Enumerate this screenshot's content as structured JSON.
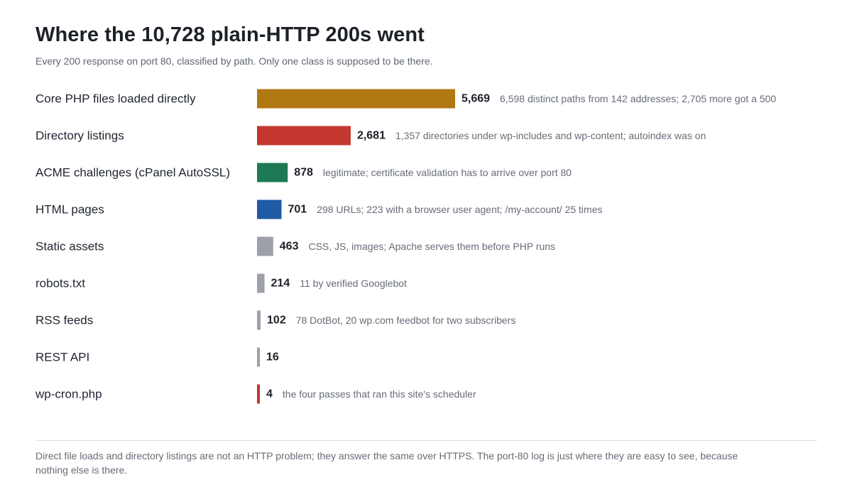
{
  "chart_data": {
    "type": "bar",
    "orientation": "horizontal",
    "title": "Where the 10,728 plain-HTTP 200s went",
    "subtitle": "Every 200 response on port 80, classified by path. Only one class is supposed to be there.",
    "rows": [
      {
        "category": "Core PHP files loaded directly",
        "value": 5669,
        "value_label": "5,669",
        "note": "6,598 distinct paths from 142 addresses; 2,705 more got a 500",
        "color": "#b07812"
      },
      {
        "category": "Directory listings",
        "value": 2681,
        "value_label": "2,681",
        "note": "1,357 directories under wp-includes and wp-content; autoindex was on",
        "color": "#c33730"
      },
      {
        "category": "ACME challenges (cPanel AutoSSL)",
        "value": 878,
        "value_label": "878",
        "note": "legitimate; certificate validation has to arrive over port 80",
        "color": "#1d7a55"
      },
      {
        "category": "HTML pages",
        "value": 701,
        "value_label": "701",
        "note": "298 URLs; 223 with a browser user agent; /my-account/ 25 times",
        "color": "#1f5aa6"
      },
      {
        "category": "Static assets",
        "value": 463,
        "value_label": "463",
        "note": "CSS, JS, images; Apache serves them before PHP runs",
        "color": "#9ca0a8"
      },
      {
        "category": "robots.txt",
        "value": 214,
        "value_label": "214",
        "note": "11 by verified Googlebot",
        "color": "#9ca0a8"
      },
      {
        "category": "RSS feeds",
        "value": 102,
        "value_label": "102",
        "note": "78 DotBot, 20 wp.com feedbot for two subscribers",
        "color": "#9ca0a8"
      },
      {
        "category": "REST API",
        "value": 16,
        "value_label": "16",
        "note": "",
        "color": "#9ca0a8"
      },
      {
        "category": "wp-cron.php",
        "value": 4,
        "value_label": "4",
        "note": "the four passes that ran this site's scheduler",
        "color": "#c33730"
      }
    ],
    "xlim": [
      0,
      5669
    ],
    "grid": false,
    "legend": "none"
  },
  "footnote": "Direct file loads and directory listings are not an HTTP problem; they answer the same over HTTPS. The port-80 log is just where they are easy to see, because nothing else is there."
}
